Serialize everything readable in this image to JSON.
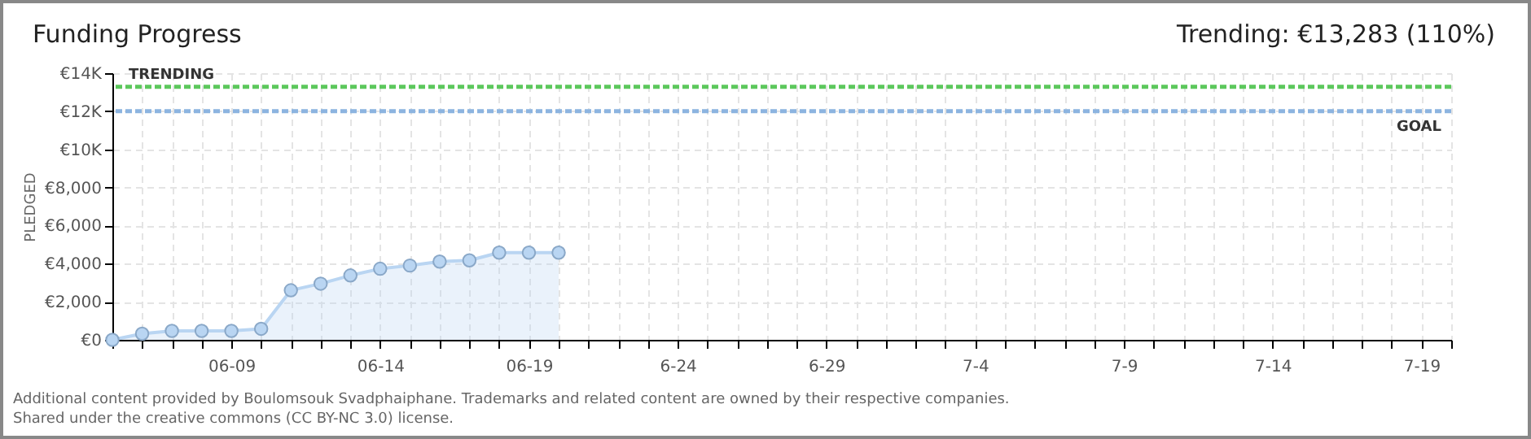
{
  "chart_data": {
    "type": "area",
    "title": "Funding Progress",
    "ylabel": "PLEDGED",
    "annotations": [
      "Trending: €13,283 (110%)",
      "Additional content provided by Boulomsouk Svadphaiphane. Trademarks and related content are owned by their respective companies.",
      "Shared under the creative commons (CC BY-NC 3.0) license."
    ],
    "x": [
      "--06-05",
      "--06-06",
      "--06-07",
      "--06-08",
      "--06-09",
      "--06-10",
      "--06-11",
      "--06-12",
      "--06-13",
      "--06-14",
      "--06-15",
      "--06-16",
      "--06-17",
      "--06-18",
      "--06-19",
      "--06-20"
    ],
    "series": [
      {
        "color": "#b9d5f2",
        "values": [
          0,
          320,
          470,
          470,
          470,
          580,
          2600,
          2950,
          3380,
          3730,
          3900,
          4110,
          4170,
          4580,
          4580,
          4580
        ]
      }
    ],
    "xlim": [
      "--06-05",
      "--07-20"
    ],
    "xticks": [
      {
        "value": "--06-05",
        "label": null
      },
      {
        "value": "--06-06",
        "label": null
      },
      {
        "value": "--06-07",
        "label": null
      },
      {
        "value": "--06-08",
        "label": null
      },
      {
        "value": "--06-09",
        "label": "06-09"
      },
      {
        "value": "--06-10",
        "label": null
      },
      {
        "value": "--06-11",
        "label": null
      },
      {
        "value": "--06-12",
        "label": null
      },
      {
        "value": "--06-13",
        "label": null
      },
      {
        "value": "--06-14",
        "label": "06-14"
      },
      {
        "value": "--06-15",
        "label": null
      },
      {
        "value": "--06-16",
        "label": null
      },
      {
        "value": "--06-17",
        "label": null
      },
      {
        "value": "--06-18",
        "label": null
      },
      {
        "value": "--06-19",
        "label": "06-19"
      },
      {
        "value": "--06-20",
        "label": null
      },
      {
        "value": "--06-21",
        "label": null
      },
      {
        "value": "--06-22",
        "label": null
      },
      {
        "value": "--06-23",
        "label": null
      },
      {
        "value": "--06-24",
        "label": "6-24"
      },
      {
        "value": "--06-25",
        "label": null
      },
      {
        "value": "--06-26",
        "label": null
      },
      {
        "value": "--06-27",
        "label": null
      },
      {
        "value": "--06-28",
        "label": null
      },
      {
        "value": "--06-29",
        "label": "6-29"
      },
      {
        "value": "--06-30",
        "label": null
      },
      {
        "value": "--07-01",
        "label": null
      },
      {
        "value": "--07-02",
        "label": null
      },
      {
        "value": "--07-03",
        "label": null
      },
      {
        "value": "--07-04",
        "label": "7-4"
      },
      {
        "value": "--07-05",
        "label": null
      },
      {
        "value": "--07-06",
        "label": null
      },
      {
        "value": "--07-07",
        "label": null
      },
      {
        "value": "--07-08",
        "label": null
      },
      {
        "value": "--07-09",
        "label": "7-9"
      },
      {
        "value": "--07-10",
        "label": null
      },
      {
        "value": "--07-11",
        "label": null
      },
      {
        "value": "--07-12",
        "label": null
      },
      {
        "value": "--07-13",
        "label": null
      },
      {
        "value": "--07-14",
        "label": "7-14"
      },
      {
        "value": "--07-15",
        "label": null
      },
      {
        "value": "--07-16",
        "label": null
      },
      {
        "value": "--07-17",
        "label": null
      },
      {
        "value": "--07-18",
        "label": null
      },
      {
        "value": "--07-19",
        "label": "7-19"
      },
      {
        "value": "--07-20",
        "label": null
      }
    ],
    "ylim": [
      0,
      14000
    ],
    "yticks": [
      {
        "value": 0,
        "label": "€0"
      },
      {
        "value": 2000,
        "label": "€2,000"
      },
      {
        "value": 4000,
        "label": "€4,000"
      },
      {
        "value": 6000,
        "label": "€6,000"
      },
      {
        "value": 8000,
        "label": "€8,000"
      },
      {
        "value": 10000,
        "label": "€10K"
      },
      {
        "value": 12000,
        "label": "€12K"
      },
      {
        "value": 14000,
        "label": "€14K"
      }
    ],
    "ref_lines": [
      {
        "axis": "y",
        "value": 13283,
        "label": "TRENDING",
        "color": "#5cc85c",
        "line_style": "dashed"
      },
      {
        "axis": "y",
        "value": 12000,
        "label": "GOAL",
        "color": "#8cb4e0",
        "line_style": "dashed"
      }
    ],
    "grid": true,
    "marker": "circle"
  }
}
